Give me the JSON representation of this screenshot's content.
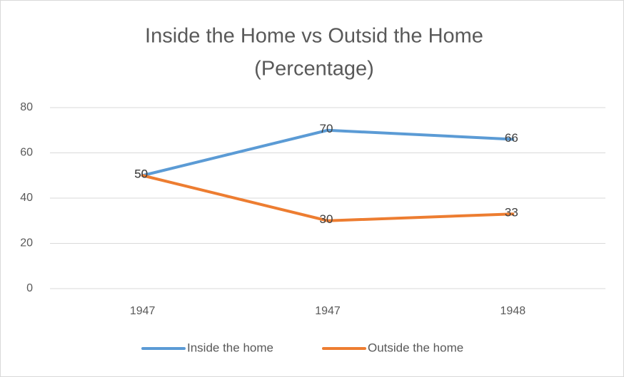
{
  "chart_data": {
    "type": "line",
    "title": [
      "Inside the Home vs Outsid the Home",
      "(Percentage)"
    ],
    "categories": [
      "1947",
      "1947",
      "1948"
    ],
    "series": [
      {
        "name": "Inside the home",
        "color": "#5b9bd5",
        "values": [
          50,
          70,
          66
        ]
      },
      {
        "name": "Outside the home",
        "color": "#ed7d31",
        "values": [
          50,
          30,
          33
        ]
      }
    ],
    "ylim": [
      0,
      80
    ],
    "yticks": [
      0,
      20,
      40,
      60,
      80
    ],
    "grid": true,
    "legend": "bottom"
  }
}
